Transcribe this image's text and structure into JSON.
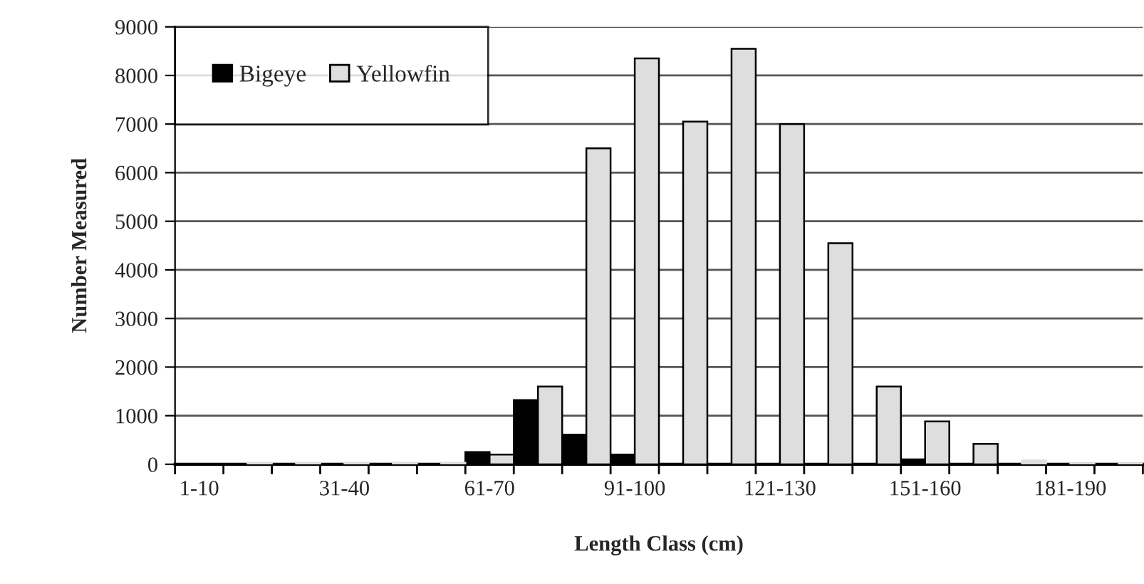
{
  "chart_data": {
    "type": "bar",
    "xlabel": "Length Class (cm)",
    "ylabel": "Number Measured",
    "categories": [
      "1-10",
      null,
      null,
      "31-40",
      null,
      null,
      "61-70",
      null,
      null,
      "91-100",
      null,
      null,
      "121-130",
      null,
      null,
      "151-160",
      null,
      null,
      "181-190",
      null
    ],
    "series": [
      {
        "name": "Bigeye",
        "color": "#000000",
        "values": [
          null,
          null,
          null,
          null,
          null,
          null,
          250,
          1320,
          610,
          200,
          null,
          null,
          null,
          null,
          null,
          100,
          null,
          null,
          null,
          null
        ]
      },
      {
        "name": "Yellowfin",
        "color": "#dedede",
        "values": [
          null,
          30,
          30,
          30,
          30,
          30,
          200,
          1600,
          6500,
          8350,
          7050,
          8550,
          7000,
          4550,
          1600,
          880,
          420,
          80,
          20,
          20
        ]
      }
    ],
    "ylim": [
      0,
      9000
    ],
    "yticks": [
      0,
      1000,
      2000,
      3000,
      4000,
      5000,
      6000,
      7000,
      8000,
      9000
    ],
    "grid": "y",
    "legend": "top left"
  }
}
